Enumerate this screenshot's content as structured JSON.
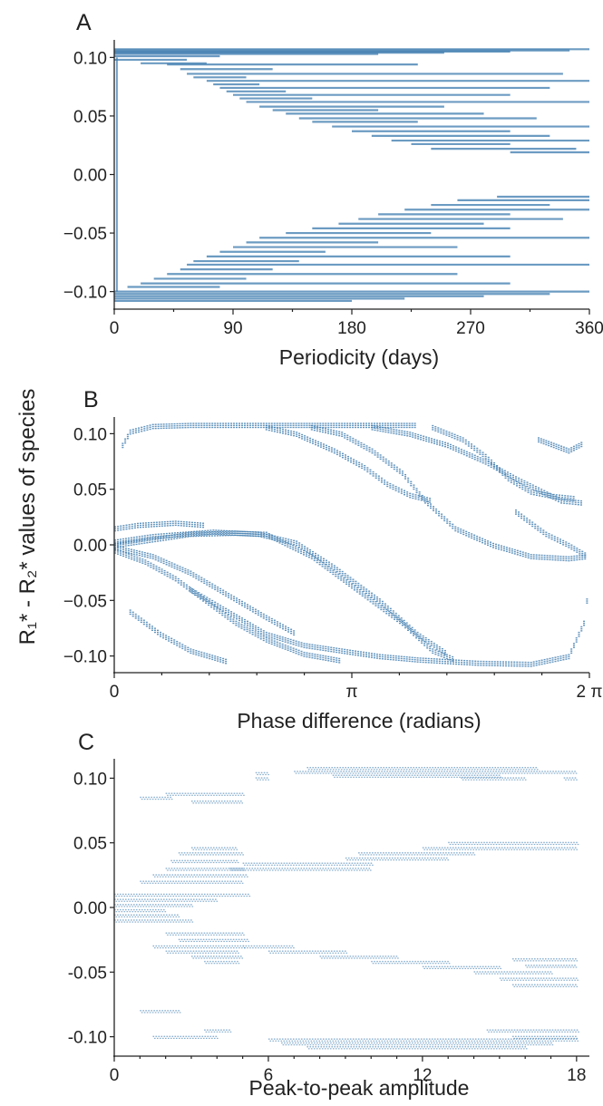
{
  "figure": {
    "shared_ylabel": "R₁* - R₂* values of species",
    "mark_color": "#3b79ad",
    "mark_color_light": "#7fa9cc"
  },
  "chart_data": [
    {
      "panel": "A",
      "type": "horizontal-segments",
      "title": "",
      "xlabel": "Periodicity (days)",
      "ylabel": "",
      "xlim": [
        0,
        360
      ],
      "ylim": [
        -0.115,
        0.115
      ],
      "x_ticks": [
        0,
        90,
        180,
        270,
        360
      ],
      "x_tick_labels": [
        "0",
        "90",
        "180",
        "270",
        "360"
      ],
      "y_ticks": [
        -0.1,
        -0.05,
        0.0,
        0.05,
        0.1
      ],
      "y_tick_labels": [
        "−0.10",
        "−0.05",
        "0.00",
        "0.05",
        "0.10"
      ],
      "grid": false,
      "segments": [
        [
          0,
          360,
          0.107
        ],
        [
          0,
          345,
          0.106
        ],
        [
          0,
          300,
          0.105
        ],
        [
          0,
          250,
          0.104
        ],
        [
          0,
          200,
          0.103
        ],
        [
          0,
          80,
          0.101
        ],
        [
          0,
          55,
          0.098
        ],
        [
          20,
          70,
          0.095
        ],
        [
          40,
          230,
          0.094
        ],
        [
          50,
          120,
          0.09
        ],
        [
          55,
          340,
          0.086
        ],
        [
          60,
          100,
          0.083
        ],
        [
          70,
          360,
          0.08
        ],
        [
          75,
          110,
          0.077
        ],
        [
          80,
          330,
          0.074
        ],
        [
          85,
          130,
          0.071
        ],
        [
          90,
          300,
          0.068
        ],
        [
          95,
          150,
          0.065
        ],
        [
          100,
          360,
          0.062
        ],
        [
          110,
          250,
          0.058
        ],
        [
          120,
          200,
          0.055
        ],
        [
          130,
          280,
          0.052
        ],
        [
          140,
          320,
          0.048
        ],
        [
          150,
          230,
          0.045
        ],
        [
          165,
          360,
          0.041
        ],
        [
          180,
          300,
          0.037
        ],
        [
          195,
          330,
          0.033
        ],
        [
          210,
          360,
          0.029
        ],
        [
          225,
          300,
          0.026
        ],
        [
          240,
          350,
          0.022
        ],
        [
          300,
          360,
          0.019
        ],
        [
          290,
          360,
          -0.019
        ],
        [
          260,
          360,
          -0.022
        ],
        [
          240,
          330,
          -0.026
        ],
        [
          220,
          360,
          -0.03
        ],
        [
          200,
          300,
          -0.034
        ],
        [
          185,
          340,
          -0.038
        ],
        [
          170,
          280,
          -0.042
        ],
        [
          150,
          300,
          -0.046
        ],
        [
          130,
          240,
          -0.05
        ],
        [
          110,
          360,
          -0.054
        ],
        [
          100,
          200,
          -0.058
        ],
        [
          90,
          260,
          -0.062
        ],
        [
          80,
          160,
          -0.066
        ],
        [
          70,
          300,
          -0.07
        ],
        [
          60,
          140,
          -0.074
        ],
        [
          55,
          360,
          -0.077
        ],
        [
          50,
          120,
          -0.081
        ],
        [
          40,
          260,
          -0.085
        ],
        [
          30,
          100,
          -0.089
        ],
        [
          20,
          300,
          -0.093
        ],
        [
          10,
          80,
          -0.096
        ],
        [
          0,
          360,
          -0.1
        ],
        [
          0,
          330,
          -0.102
        ],
        [
          0,
          280,
          -0.104
        ],
        [
          0,
          220,
          -0.106
        ],
        [
          0,
          180,
          -0.108
        ]
      ]
    },
    {
      "panel": "B",
      "type": "scatter",
      "title": "",
      "xlabel": "Phase difference (radians)",
      "ylabel": "",
      "xlim": [
        0,
        6.2832
      ],
      "ylim": [
        -0.115,
        0.115
      ],
      "x_ticks": [
        0,
        3.1416,
        6.2832
      ],
      "x_tick_labels": [
        "0",
        "π",
        "2 π"
      ],
      "y_ticks": [
        -0.1,
        -0.05,
        0.0,
        0.05,
        0.1
      ],
      "y_tick_labels": [
        "−0.10",
        "−0.05",
        "0.00",
        "0.05",
        "0.10"
      ],
      "grid": false,
      "curves": [
        [
          [
            0.0,
            0.0
          ],
          [
            0.6,
            0.006
          ],
          [
            1.0,
            0.01
          ],
          [
            1.6,
            0.011
          ],
          [
            2.0,
            0.01
          ],
          [
            2.6,
            -0.01
          ],
          [
            3.2,
            -0.04
          ],
          [
            3.8,
            -0.07
          ],
          [
            4.2,
            -0.095
          ],
          [
            4.5,
            -0.103
          ]
        ],
        [
          [
            0.0,
            0.003
          ],
          [
            0.5,
            0.008
          ],
          [
            1.3,
            0.012
          ],
          [
            1.9,
            0.01
          ],
          [
            2.4,
            0.002
          ],
          [
            2.9,
            -0.02
          ],
          [
            3.5,
            -0.05
          ],
          [
            4.0,
            -0.08
          ],
          [
            4.4,
            -0.098
          ]
        ],
        [
          [
            0.0,
            0.015
          ],
          [
            0.3,
            0.018
          ],
          [
            0.8,
            0.02
          ],
          [
            1.2,
            0.018
          ]
        ],
        [
          [
            0.0,
            -0.005
          ],
          [
            0.4,
            -0.015
          ],
          [
            0.8,
            -0.03
          ],
          [
            1.2,
            -0.05
          ],
          [
            1.6,
            -0.07
          ],
          [
            2.0,
            -0.085
          ],
          [
            2.5,
            -0.098
          ],
          [
            3.0,
            -0.104
          ]
        ],
        [
          [
            0.0,
            -0.002
          ],
          [
            0.5,
            -0.01
          ],
          [
            1.0,
            -0.025
          ],
          [
            1.5,
            -0.045
          ],
          [
            2.0,
            -0.065
          ],
          [
            2.4,
            -0.08
          ]
        ],
        [
          [
            0.1,
            0.09
          ],
          [
            0.2,
            0.102
          ],
          [
            0.5,
            0.107
          ],
          [
            1.0,
            0.108
          ],
          [
            2.0,
            0.108
          ],
          [
            3.0,
            0.108
          ],
          [
            4.0,
            0.108
          ]
        ],
        [
          [
            2.6,
            0.106
          ],
          [
            3.0,
            0.1
          ],
          [
            3.4,
            0.085
          ],
          [
            3.8,
            0.065
          ],
          [
            4.1,
            0.04
          ],
          [
            4.5,
            0.015
          ],
          [
            5.0,
            0.0
          ],
          [
            5.5,
            -0.01
          ],
          [
            6.0,
            -0.012
          ],
          [
            6.25,
            -0.01
          ]
        ],
        [
          [
            2.0,
            0.106
          ],
          [
            2.4,
            0.1
          ],
          [
            2.9,
            0.085
          ],
          [
            3.3,
            0.07
          ],
          [
            3.6,
            0.055
          ],
          [
            3.9,
            0.045
          ],
          [
            4.2,
            0.04
          ]
        ],
        [
          [
            3.4,
            0.106
          ],
          [
            3.9,
            0.1
          ],
          [
            4.4,
            0.09
          ],
          [
            4.9,
            0.075
          ],
          [
            5.3,
            0.06
          ],
          [
            5.6,
            0.05
          ],
          [
            5.9,
            0.04
          ],
          [
            6.2,
            0.038
          ]
        ],
        [
          [
            4.2,
            0.106
          ],
          [
            4.6,
            0.095
          ],
          [
            4.9,
            0.08
          ],
          [
            5.2,
            0.06
          ],
          [
            5.5,
            0.048
          ],
          [
            5.8,
            0.044
          ],
          [
            6.1,
            0.042
          ]
        ],
        [
          [
            5.3,
            0.03
          ],
          [
            5.7,
            0.01
          ],
          [
            6.0,
            0.0
          ],
          [
            6.25,
            -0.01
          ]
        ],
        [
          [
            1.0,
            -0.04
          ],
          [
            1.5,
            -0.06
          ],
          [
            2.0,
            -0.08
          ],
          [
            2.5,
            -0.09
          ],
          [
            3.0,
            -0.095
          ],
          [
            3.5,
            -0.1
          ],
          [
            4.0,
            -0.103
          ],
          [
            4.8,
            -0.106
          ],
          [
            5.5,
            -0.107
          ],
          [
            6.0,
            -0.1
          ],
          [
            6.2,
            -0.07
          ],
          [
            6.28,
            -0.03
          ]
        ],
        [
          [
            0.2,
            -0.06
          ],
          [
            0.6,
            -0.08
          ],
          [
            1.0,
            -0.095
          ],
          [
            1.5,
            -0.105
          ]
        ],
        [
          [
            5.6,
            0.095
          ],
          [
            5.8,
            0.09
          ],
          [
            6.0,
            0.085
          ],
          [
            6.2,
            0.092
          ]
        ]
      ]
    },
    {
      "panel": "C",
      "type": "scatter",
      "title": "",
      "xlabel": "Peak-to-peak amplitude",
      "ylabel": "",
      "xlim": [
        0,
        18.5
      ],
      "ylim": [
        -0.115,
        0.115
      ],
      "x_ticks": [
        0,
        6,
        12,
        18
      ],
      "x_tick_labels": [
        "0",
        "6",
        "12",
        "18"
      ],
      "y_ticks": [
        -0.1,
        -0.05,
        0.0,
        0.05,
        0.1
      ],
      "y_tick_labels": [
        "-0.10",
        "-0.05",
        "0.00",
        "0.05",
        "0.10"
      ],
      "grid": false,
      "bands": [
        [
          0.0,
          5.2,
          0.01
        ],
        [
          0.0,
          4.0,
          0.006
        ],
        [
          0.0,
          3.0,
          0.002
        ],
        [
          0.0,
          2.0,
          -0.002
        ],
        [
          0.0,
          2.5,
          -0.006
        ],
        [
          0.0,
          3.0,
          -0.01
        ],
        [
          1.0,
          5.0,
          0.02
        ],
        [
          1.5,
          5.2,
          0.025
        ],
        [
          2.0,
          5.0,
          0.03
        ],
        [
          2.2,
          4.8,
          0.036
        ],
        [
          2.5,
          5.0,
          0.042
        ],
        [
          3.0,
          4.8,
          0.046
        ],
        [
          4.5,
          10.0,
          0.03
        ],
        [
          5.0,
          10.0,
          0.034
        ],
        [
          9.0,
          13.0,
          0.038
        ],
        [
          9.5,
          14.0,
          0.042
        ],
        [
          12.0,
          18.0,
          0.046
        ],
        [
          13.0,
          18.0,
          0.05
        ],
        [
          2.0,
          5.0,
          -0.02
        ],
        [
          2.5,
          5.2,
          -0.025
        ],
        [
          1.5,
          5.0,
          -0.03
        ],
        [
          2.0,
          4.8,
          -0.034
        ],
        [
          3.0,
          5.0,
          -0.038
        ],
        [
          3.5,
          4.8,
          -0.042
        ],
        [
          5.0,
          7.0,
          -0.03
        ],
        [
          6.0,
          9.0,
          -0.034
        ],
        [
          8.0,
          11.0,
          -0.038
        ],
        [
          10.0,
          13.0,
          -0.042
        ],
        [
          12.0,
          15.0,
          -0.046
        ],
        [
          14.0,
          17.0,
          -0.05
        ],
        [
          15.5,
          18.0,
          -0.04
        ],
        [
          16.0,
          18.0,
          -0.045
        ],
        [
          15.0,
          18.0,
          -0.055
        ],
        [
          15.5,
          18.0,
          -0.06
        ],
        [
          1.0,
          2.2,
          0.085
        ],
        [
          2.0,
          5.0,
          0.088
        ],
        [
          3.0,
          5.0,
          0.082
        ],
        [
          5.5,
          6.0,
          0.1
        ],
        [
          5.5,
          6.0,
          0.104
        ],
        [
          7.0,
          18.0,
          0.105
        ],
        [
          7.5,
          16.5,
          0.108
        ],
        [
          8.5,
          15.0,
          0.102
        ],
        [
          13.5,
          16.0,
          0.1
        ],
        [
          17.5,
          18.0,
          0.1
        ],
        [
          6.0,
          18.0,
          -0.102
        ],
        [
          6.5,
          17.0,
          -0.105
        ],
        [
          7.5,
          16.0,
          -0.108
        ],
        [
          14.5,
          18.0,
          -0.095
        ],
        [
          15.5,
          18.0,
          -0.1
        ],
        [
          1.0,
          2.5,
          -0.08
        ],
        [
          1.5,
          4.0,
          -0.1
        ],
        [
          3.5,
          4.5,
          -0.095
        ]
      ]
    }
  ]
}
